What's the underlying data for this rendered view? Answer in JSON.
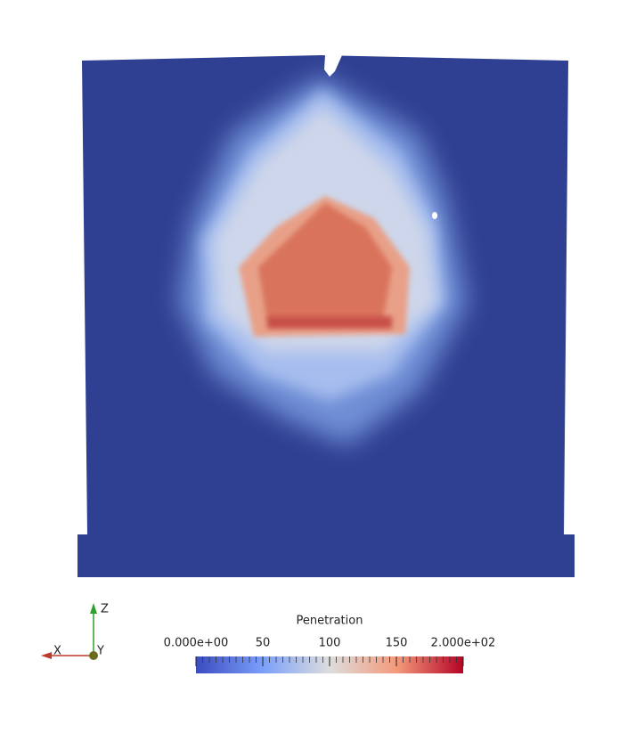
{
  "colorbar": {
    "title": "Penetration",
    "range": [
      0,
      200
    ],
    "ticks": [
      {
        "value": 0,
        "label": "0.000e+00"
      },
      50,
      100,
      150,
      {
        "value": 200,
        "label": "2.000e+02"
      }
    ]
  },
  "axes": {
    "x": "X",
    "y": "Y",
    "z": "Z"
  }
}
